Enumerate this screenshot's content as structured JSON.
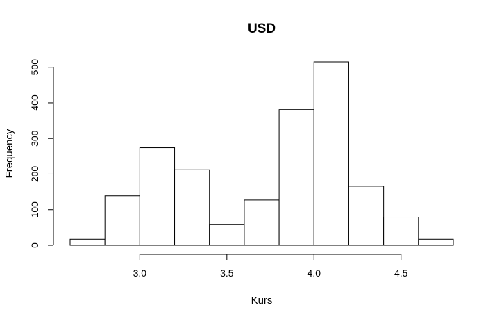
{
  "chart_data": {
    "type": "bar",
    "title": "USD",
    "xlabel": "Kurs",
    "ylabel": "Frequency",
    "bins": [
      {
        "start": 2.6,
        "end": 2.8,
        "count": 17
      },
      {
        "start": 2.8,
        "end": 3.0,
        "count": 139
      },
      {
        "start": 3.0,
        "end": 3.2,
        "count": 274
      },
      {
        "start": 3.2,
        "end": 3.4,
        "count": 212
      },
      {
        "start": 3.4,
        "end": 3.6,
        "count": 58
      },
      {
        "start": 3.6,
        "end": 3.8,
        "count": 127
      },
      {
        "start": 3.8,
        "end": 4.0,
        "count": 381
      },
      {
        "start": 4.0,
        "end": 4.2,
        "count": 515
      },
      {
        "start": 4.2,
        "end": 4.4,
        "count": 166
      },
      {
        "start": 4.4,
        "end": 4.6,
        "count": 79
      },
      {
        "start": 4.6,
        "end": 4.8,
        "count": 17
      }
    ],
    "xlim": [
      2.6,
      4.8
    ],
    "ylim": [
      0,
      515
    ],
    "x_ticks": [
      {
        "value": 3.0,
        "label": "3.0"
      },
      {
        "value": 3.5,
        "label": "3.5"
      },
      {
        "value": 4.0,
        "label": "4.0"
      },
      {
        "value": 4.5,
        "label": "4.5"
      }
    ],
    "y_ticks": [
      {
        "value": 0,
        "label": "0"
      },
      {
        "value": 100,
        "label": "100"
      },
      {
        "value": 200,
        "label": "200"
      },
      {
        "value": 300,
        "label": "300"
      },
      {
        "value": 400,
        "label": "400"
      },
      {
        "value": 500,
        "label": "500"
      }
    ],
    "grid": false,
    "legend": "none",
    "bar_fill": "#ffffff",
    "bar_stroke": "#000000"
  }
}
